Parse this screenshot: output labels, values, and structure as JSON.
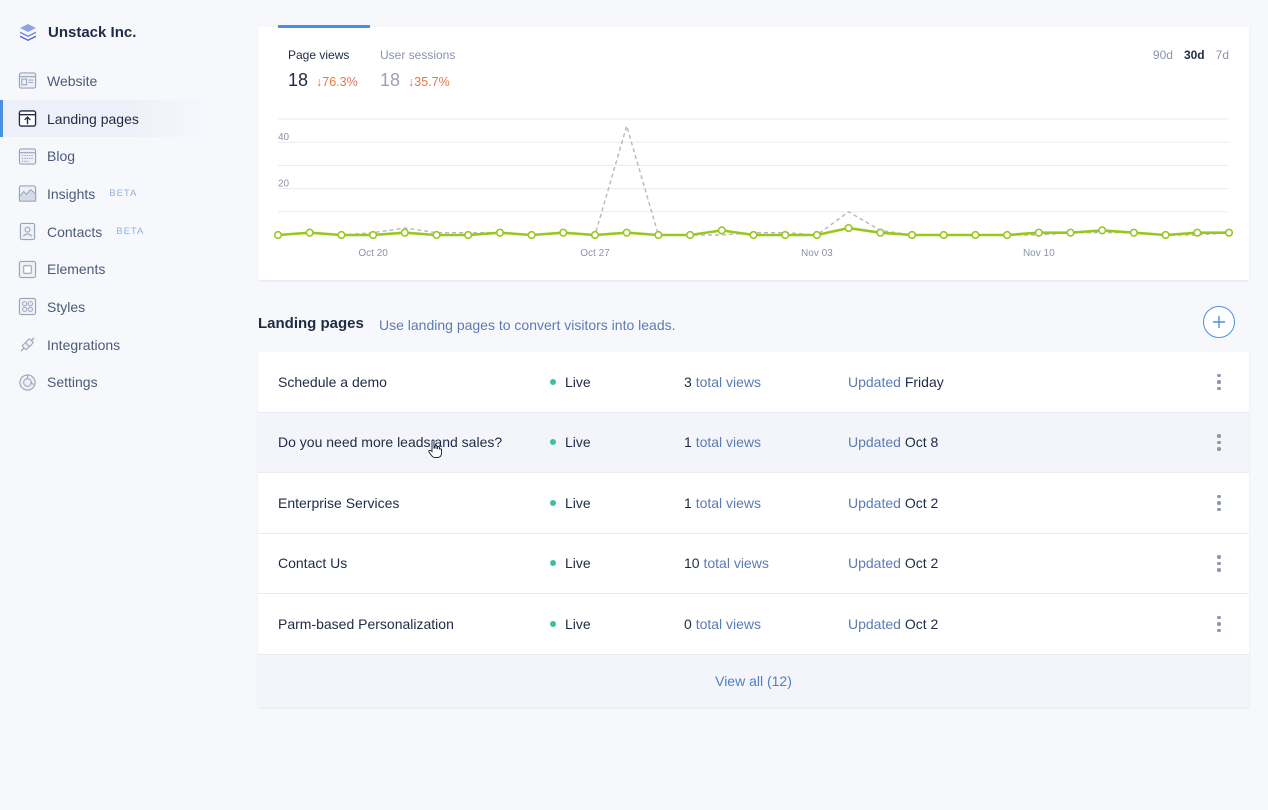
{
  "brand": {
    "name": "Unstack Inc."
  },
  "sidebar": {
    "items": [
      {
        "label": "Website",
        "icon": "website-icon",
        "beta": ""
      },
      {
        "label": "Landing pages",
        "icon": "landing-pages-icon",
        "beta": "",
        "active": true
      },
      {
        "label": "Blog",
        "icon": "blog-icon",
        "beta": ""
      },
      {
        "label": "Insights",
        "icon": "insights-icon",
        "beta": "BETA"
      },
      {
        "label": "Contacts",
        "icon": "contacts-icon",
        "beta": "BETA"
      },
      {
        "label": "Elements",
        "icon": "elements-icon",
        "beta": ""
      },
      {
        "label": "Styles",
        "icon": "styles-icon",
        "beta": ""
      },
      {
        "label": "Integrations",
        "icon": "integrations-icon",
        "beta": ""
      },
      {
        "label": "Settings",
        "icon": "settings-icon",
        "beta": ""
      }
    ]
  },
  "stats": {
    "page_views": {
      "label": "Page views",
      "value": "18",
      "change": "↓76.3%"
    },
    "user_sessions": {
      "label": "User sessions",
      "value": "18",
      "change": "↓35.7%"
    }
  },
  "range": {
    "options": [
      "90d",
      "30d",
      "7d"
    ],
    "selected": "30d"
  },
  "chart_data": {
    "type": "line",
    "ylim": [
      0,
      50
    ],
    "y_ticks": [
      20,
      40
    ],
    "x_tick_labels": [
      "Oct 20",
      "Oct 27",
      "Nov 03",
      "Nov 10"
    ],
    "x_tick_indices": [
      3,
      10,
      17,
      24
    ],
    "series": [
      {
        "values": [
          0,
          1,
          0,
          0,
          1,
          0,
          0,
          1,
          0,
          1,
          0,
          1,
          0,
          0,
          2,
          0,
          0,
          0,
          3,
          1,
          0,
          0,
          0,
          0,
          1,
          1,
          2,
          1,
          0,
          1,
          1
        ],
        "color": "#9ac71e",
        "style": "solid",
        "markers": true
      },
      {
        "values": [
          0,
          1,
          0,
          1,
          3,
          1,
          1,
          1,
          0,
          1,
          0,
          47,
          0,
          0,
          0,
          1,
          1,
          0,
          10,
          2,
          0,
          0,
          0,
          0,
          0,
          1,
          1,
          1,
          0,
          0,
          1
        ],
        "color": "#b5b8bf",
        "style": "dashed",
        "markers": false
      }
    ],
    "grid": true
  },
  "section": {
    "title": "Landing pages",
    "subtitle": "Use landing pages to convert visitors into leads."
  },
  "pages": [
    {
      "name": "Schedule a demo",
      "status": "Live",
      "views": "3",
      "views_label": "total views",
      "updated_label": "Updated",
      "updated": "Friday"
    },
    {
      "name": "Do you need more leads and sales?",
      "status": "Live",
      "views": "1",
      "views_label": "total views",
      "updated_label": "Updated",
      "updated": "Oct 8"
    },
    {
      "name": "Enterprise Services",
      "status": "Live",
      "views": "1",
      "views_label": "total views",
      "updated_label": "Updated",
      "updated": "Oct 2"
    },
    {
      "name": "Contact Us",
      "status": "Live",
      "views": "10",
      "views_label": "total views",
      "updated_label": "Updated",
      "updated": "Oct 2"
    },
    {
      "name": "Parm-based Personalization",
      "status": "Live",
      "views": "0",
      "views_label": "total views",
      "updated_label": "Updated",
      "updated": "Oct 2"
    }
  ],
  "view_all": "View all (12)",
  "colors": {
    "accent": "#4a90e2",
    "live": "#3cc0a5",
    "down": "#e8754a",
    "series_primary": "#9ac71e"
  }
}
